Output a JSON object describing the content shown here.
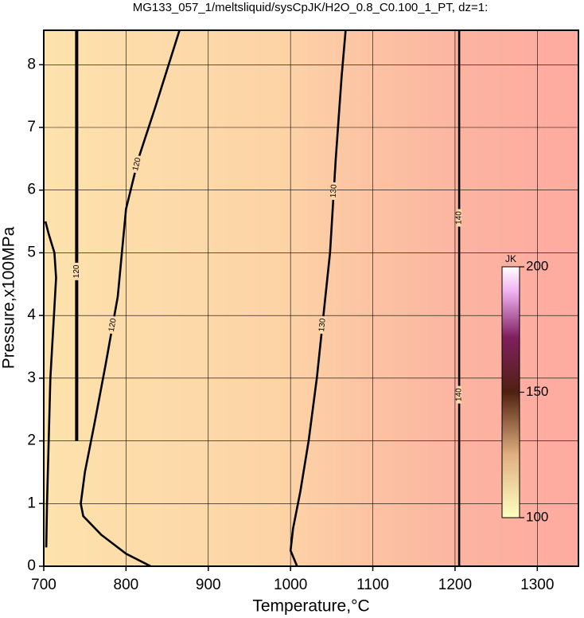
{
  "chart_data": {
    "type": "contour",
    "title": "MG133_057_1/meltsliquid/sysCpJK/H2O_0.8_C0.100_1_PT, dz=1:",
    "xlabel": "Temperature,°C",
    "ylabel": "Pressure,x100MPa",
    "xlim": [
      700,
      1350
    ],
    "ylim": [
      0,
      8.55
    ],
    "xticks": [
      700,
      800,
      900,
      1000,
      1100,
      1200,
      1300
    ],
    "yticks": [
      0,
      1,
      2,
      3,
      4,
      5,
      6,
      7,
      8
    ],
    "grid": true,
    "contours": [
      {
        "level": 120,
        "x": [
          703,
          704,
          708,
          715,
          713,
          706,
          702
        ],
        "y": [
          0.3,
          1,
          3,
          4.6,
          5.0,
          5.3,
          5.5
        ]
      },
      {
        "level": 120,
        "x": [
          740,
          740,
          740,
          740
        ],
        "y": [
          2,
          4.3,
          7,
          8.55
        ]
      },
      {
        "level": 120,
        "x": [
          830,
          800,
          770,
          748,
          745,
          750,
          762,
          775,
          790,
          800,
          815,
          835,
          865
        ],
        "y": [
          0,
          0.2,
          0.5,
          0.8,
          1.0,
          1.5,
          2.3,
          3.2,
          4.3,
          5.7,
          6.5,
          7.3,
          8.55
        ]
      },
      {
        "level": 130,
        "x": [
          1008,
          1000,
          1003,
          1012,
          1022,
          1032,
          1040,
          1048,
          1055,
          1062,
          1067
        ],
        "y": [
          0,
          0.25,
          0.6,
          1.2,
          2,
          3,
          4,
          5,
          6.5,
          7.8,
          8.55
        ]
      },
      {
        "level": 140,
        "x": [
          1205,
          1205
        ],
        "y": [
          0,
          8.55
        ]
      }
    ],
    "colorbar": {
      "label": "JK",
      "lim": [
        100,
        200
      ],
      "ticks": [
        100,
        150,
        200
      ]
    }
  }
}
